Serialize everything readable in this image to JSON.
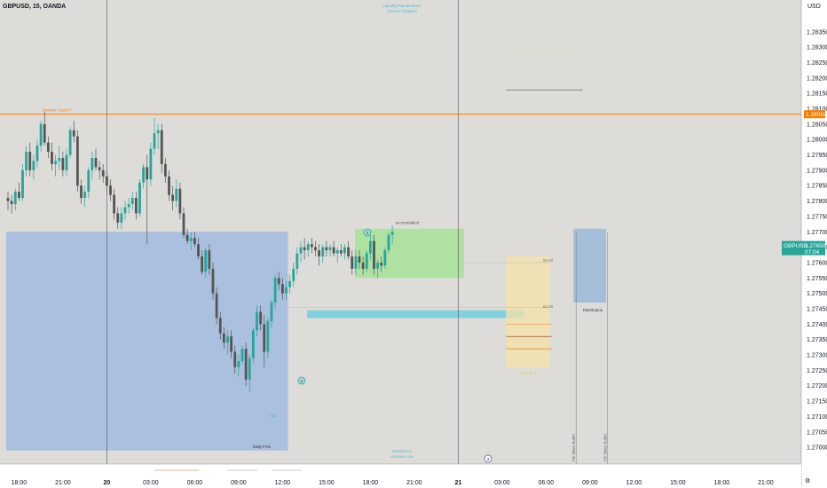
{
  "header": {
    "symbol_line": "GBPUSD, 15, OANDA",
    "currency": "USD"
  },
  "chart_data": {
    "type": "candlestick",
    "symbol": "GBPUSD",
    "timeframe": "15",
    "source": "OANDA",
    "ylim": [
      1.2696,
      1.2843
    ],
    "y_ticks": [
      "1.28350",
      "1.28300",
      "1.28250",
      "1.28200",
      "1.28150",
      "1.28100",
      "1.28050",
      "1.28000",
      "1.27950",
      "1.27900",
      "1.27850",
      "1.27800",
      "1.27750",
      "1.27700",
      "1.27650",
      "1.27600",
      "1.27550",
      "1.27500",
      "1.27450",
      "1.27400",
      "1.27350",
      "1.27300",
      "1.27250",
      "1.27200",
      "1.27150",
      "1.27100",
      "1.27050",
      "1.27000"
    ],
    "x_ticks": [
      {
        "label": "18:00",
        "bar": 3,
        "day": false
      },
      {
        "label": "21:00",
        "bar": 15,
        "day": false
      },
      {
        "label": "20",
        "bar": 27,
        "day": true
      },
      {
        "label": "03:00",
        "bar": 39,
        "day": false
      },
      {
        "label": "06:00",
        "bar": 51,
        "day": false
      },
      {
        "label": "09:00",
        "bar": 63,
        "day": false
      },
      {
        "label": "12:00",
        "bar": 75,
        "day": false
      },
      {
        "label": "15:00",
        "bar": 87,
        "day": false
      },
      {
        "label": "18:00",
        "bar": 99,
        "day": false
      },
      {
        "label": "21:00",
        "bar": 111,
        "day": false
      },
      {
        "label": "21",
        "bar": 123,
        "day": true
      },
      {
        "label": "03:00",
        "bar": 135,
        "day": false
      },
      {
        "label": "06:00",
        "bar": 147,
        "day": false
      },
      {
        "label": "09:00",
        "bar": 159,
        "day": false
      },
      {
        "label": "12:00",
        "bar": 171,
        "day": false
      },
      {
        "label": "15:00",
        "bar": 183,
        "day": false
      },
      {
        "label": "18:00",
        "bar": 195,
        "day": false
      },
      {
        "label": "21:00",
        "bar": 207,
        "day": false
      }
    ],
    "day_separators": [
      27,
      123
    ],
    "last_price": "1.27650",
    "last_price_sub": "07:04",
    "key_level_price": "1.28082",
    "bull_color": "#26a69a",
    "bear_color": "#555555",
    "candles": [
      [
        1.2781,
        1.2783,
        1.2777,
        1.278
      ],
      [
        1.278,
        1.2782,
        1.2776,
        1.2779
      ],
      [
        1.2779,
        1.2784,
        1.2777,
        1.2783
      ],
      [
        1.2783,
        1.2786,
        1.278,
        1.2781
      ],
      [
        1.2781,
        1.2792,
        1.278,
        1.279
      ],
      [
        1.279,
        1.2798,
        1.2788,
        1.2796
      ],
      [
        1.2796,
        1.2799,
        1.2788,
        1.279
      ],
      [
        1.279,
        1.2795,
        1.2787,
        1.2793
      ],
      [
        1.2793,
        1.28,
        1.2791,
        1.2798
      ],
      [
        1.2798,
        1.2806,
        1.2796,
        1.2805
      ],
      [
        1.2805,
        1.2809,
        1.2798,
        1.2799
      ],
      [
        1.2799,
        1.2801,
        1.2794,
        1.2796
      ],
      [
        1.2796,
        1.2799,
        1.279,
        1.2792
      ],
      [
        1.2792,
        1.2795,
        1.2788,
        1.2793
      ],
      [
        1.2793,
        1.2798,
        1.279,
        1.2794
      ],
      [
        1.2794,
        1.2796,
        1.2788,
        1.279
      ],
      [
        1.279,
        1.2797,
        1.2788,
        1.2795
      ],
      [
        1.2795,
        1.2804,
        1.2794,
        1.2803
      ],
      [
        1.2803,
        1.2806,
        1.2799,
        1.2801
      ],
      [
        1.2801,
        1.2803,
        1.2783,
        1.2785
      ],
      [
        1.2785,
        1.2787,
        1.2779,
        1.2781
      ],
      [
        1.2781,
        1.2785,
        1.2778,
        1.2783
      ],
      [
        1.2783,
        1.2791,
        1.2781,
        1.279
      ],
      [
        1.279,
        1.2796,
        1.2787,
        1.2794
      ],
      [
        1.2794,
        1.2797,
        1.279,
        1.2791
      ],
      [
        1.2791,
        1.2793,
        1.2787,
        1.279
      ],
      [
        1.279,
        1.2792,
        1.2786,
        1.2788
      ],
      [
        1.2788,
        1.279,
        1.2782,
        1.2785
      ],
      [
        1.2785,
        1.2787,
        1.278,
        1.2782
      ],
      [
        1.2782,
        1.2784,
        1.2774,
        1.2776
      ],
      [
        1.2776,
        1.2778,
        1.2771,
        1.2773
      ],
      [
        1.2773,
        1.2778,
        1.2771,
        1.2776
      ],
      [
        1.2776,
        1.278,
        1.2774,
        1.2778
      ],
      [
        1.2778,
        1.2781,
        1.2776,
        1.2779
      ],
      [
        1.2779,
        1.2783,
        1.2777,
        1.2781
      ],
      [
        1.2781,
        1.2783,
        1.2774,
        1.2776
      ],
      [
        1.2776,
        1.2787,
        1.2775,
        1.2786
      ],
      [
        1.2786,
        1.2792,
        1.2784,
        1.2791
      ],
      [
        1.2791,
        1.2795,
        1.2766,
        1.2787
      ],
      [
        1.2787,
        1.2799,
        1.2785,
        1.2797
      ],
      [
        1.2797,
        1.2807,
        1.2795,
        1.2802
      ],
      [
        1.2802,
        1.2805,
        1.2797,
        1.2803
      ],
      [
        1.2803,
        1.2805,
        1.2789,
        1.2792
      ],
      [
        1.2792,
        1.2794,
        1.2786,
        1.2788
      ],
      [
        1.2788,
        1.279,
        1.278,
        1.2782
      ],
      [
        1.2782,
        1.2785,
        1.2777,
        1.278
      ],
      [
        1.278,
        1.2787,
        1.2778,
        1.2784
      ],
      [
        1.2784,
        1.2786,
        1.2774,
        1.2776
      ],
      [
        1.2776,
        1.2778,
        1.2768,
        1.2769
      ],
      [
        1.2769,
        1.2771,
        1.2766,
        1.2767
      ],
      [
        1.2767,
        1.277,
        1.2764,
        1.2768
      ],
      [
        1.2768,
        1.277,
        1.2765,
        1.2766
      ],
      [
        1.2766,
        1.2768,
        1.2761,
        1.2762
      ],
      [
        1.2762,
        1.2764,
        1.2756,
        1.2757
      ],
      [
        1.2757,
        1.2765,
        1.2755,
        1.2764
      ],
      [
        1.2764,
        1.2766,
        1.2756,
        1.2758
      ],
      [
        1.2758,
        1.276,
        1.2748,
        1.275
      ],
      [
        1.275,
        1.2752,
        1.274,
        1.2742
      ],
      [
        1.2742,
        1.2744,
        1.2735,
        1.2737
      ],
      [
        1.2737,
        1.2739,
        1.2732,
        1.2734
      ],
      [
        1.2734,
        1.2738,
        1.273,
        1.2736
      ],
      [
        1.2736,
        1.2738,
        1.2729,
        1.2731
      ],
      [
        1.2731,
        1.2733,
        1.2724,
        1.2726
      ],
      [
        1.2726,
        1.273,
        1.2723,
        1.2728
      ],
      [
        1.2728,
        1.2733,
        1.2727,
        1.2732
      ],
      [
        1.2732,
        1.2734,
        1.272,
        1.2722
      ],
      [
        1.2722,
        1.273,
        1.2718,
        1.2729
      ],
      [
        1.2729,
        1.2739,
        1.2727,
        1.2738
      ],
      [
        1.2738,
        1.2746,
        1.2736,
        1.2744
      ],
      [
        1.2744,
        1.2746,
        1.2738,
        1.274
      ],
      [
        1.274,
        1.2743,
        1.2726,
        1.2731
      ],
      [
        1.2731,
        1.2742,
        1.2729,
        1.2741
      ],
      [
        1.2741,
        1.2748,
        1.2739,
        1.2747
      ],
      [
        1.2747,
        1.2756,
        1.2745,
        1.2755
      ],
      [
        1.2755,
        1.2757,
        1.2751,
        1.2753
      ],
      [
        1.2753,
        1.2755,
        1.2748,
        1.275
      ],
      [
        1.275,
        1.2754,
        1.2748,
        1.2752
      ],
      [
        1.2752,
        1.2756,
        1.275,
        1.2754
      ],
      [
        1.2754,
        1.276,
        1.2752,
        1.2758
      ],
      [
        1.2758,
        1.2765,
        1.2756,
        1.2763
      ],
      [
        1.2763,
        1.2767,
        1.276,
        1.2765
      ],
      [
        1.2765,
        1.2768,
        1.2761,
        1.2764
      ],
      [
        1.2764,
        1.2767,
        1.2762,
        1.2766
      ],
      [
        1.2766,
        1.2768,
        1.2763,
        1.2765
      ],
      [
        1.2765,
        1.2767,
        1.2762,
        1.2764
      ],
      [
        1.2764,
        1.2766,
        1.2759,
        1.2762
      ],
      [
        1.2762,
        1.2766,
        1.276,
        1.2765
      ],
      [
        1.2765,
        1.2767,
        1.2762,
        1.2764
      ],
      [
        1.2764,
        1.2766,
        1.2762,
        1.2765
      ],
      [
        1.2765,
        1.2767,
        1.2762,
        1.2763
      ],
      [
        1.2763,
        1.2765,
        1.276,
        1.2764
      ],
      [
        1.2764,
        1.2766,
        1.2762,
        1.2763
      ],
      [
        1.2763,
        1.2766,
        1.2761,
        1.2765
      ],
      [
        1.2765,
        1.2767,
        1.2761,
        1.2762
      ],
      [
        1.2762,
        1.2764,
        1.2756,
        1.2758
      ],
      [
        1.2758,
        1.2764,
        1.2756,
        1.2762
      ],
      [
        1.2762,
        1.2764,
        1.2758,
        1.276
      ],
      [
        1.276,
        1.2762,
        1.2756,
        1.2758
      ],
      [
        1.2758,
        1.2764,
        1.2757,
        1.2763
      ],
      [
        1.2763,
        1.2769,
        1.2761,
        1.2767
      ],
      [
        1.2767,
        1.2769,
        1.2756,
        1.2758
      ],
      [
        1.2758,
        1.2761,
        1.2755,
        1.276
      ],
      [
        1.276,
        1.2762,
        1.2757,
        1.2759
      ],
      [
        1.2759,
        1.2765,
        1.2758,
        1.2764
      ],
      [
        1.2764,
        1.277,
        1.2763,
        1.2769
      ],
      [
        1.2769,
        1.2772,
        1.2766,
        1.277
      ]
    ],
    "zones": [
      {
        "name": "Daily FVG",
        "p_top": 1.277,
        "p_bot": 1.2699,
        "bar_start": -0.5,
        "bar_end": 76.5,
        "color": "#8fb1e0",
        "opacity": 0.65
      },
      {
        "name": "accumulation",
        "p_top": 1.2771,
        "p_bot": 1.2755,
        "bar_start": 94.8,
        "bar_end": 124.6,
        "color": "#9be28a",
        "opacity": 0.7
      },
      {
        "name": "liquidity-band",
        "p_top": 1.27445,
        "p_bot": 1.2742,
        "bar_start": 81.7,
        "bar_end": 141.1,
        "color": "#6fd0de",
        "opacity": 0.85
      },
      {
        "name": "target-box",
        "p_top": 1.2762,
        "p_bot": 1.2726,
        "bar_start": 136.1,
        "bar_end": 148.0,
        "color": "#f4e3a6",
        "opacity": 0.75
      },
      {
        "name": "Distribution",
        "p_top": 1.2771,
        "p_bot": 1.2747,
        "bar_start": 154.5,
        "bar_end": 163.4,
        "color": "#9bb8d8",
        "opacity": 0.85
      }
    ],
    "annotations": {
      "key_level_label": "Breaker / pool H",
      "top_note_1": "Liquidity Manipulation",
      "top_note_2": "session Stopped",
      "accumulation_label": "accumulation",
      "daily_fvg_label": "Daily FVG",
      "sweep_label": "S pit",
      "bottom_note_1": "Distribution",
      "bottom_note_2": "session Low",
      "distribution_label": "Distribution",
      "fill_label": "FVG 61.8",
      "target_label_1": "50.00",
      "target_label_2": "61.80",
      "vert_label_1": "FB Silver Bullet",
      "vert_label_2": "FB Silver Bullet",
      "marker_1": "1",
      "marker_2": "2",
      "marker_3": "3"
    }
  }
}
